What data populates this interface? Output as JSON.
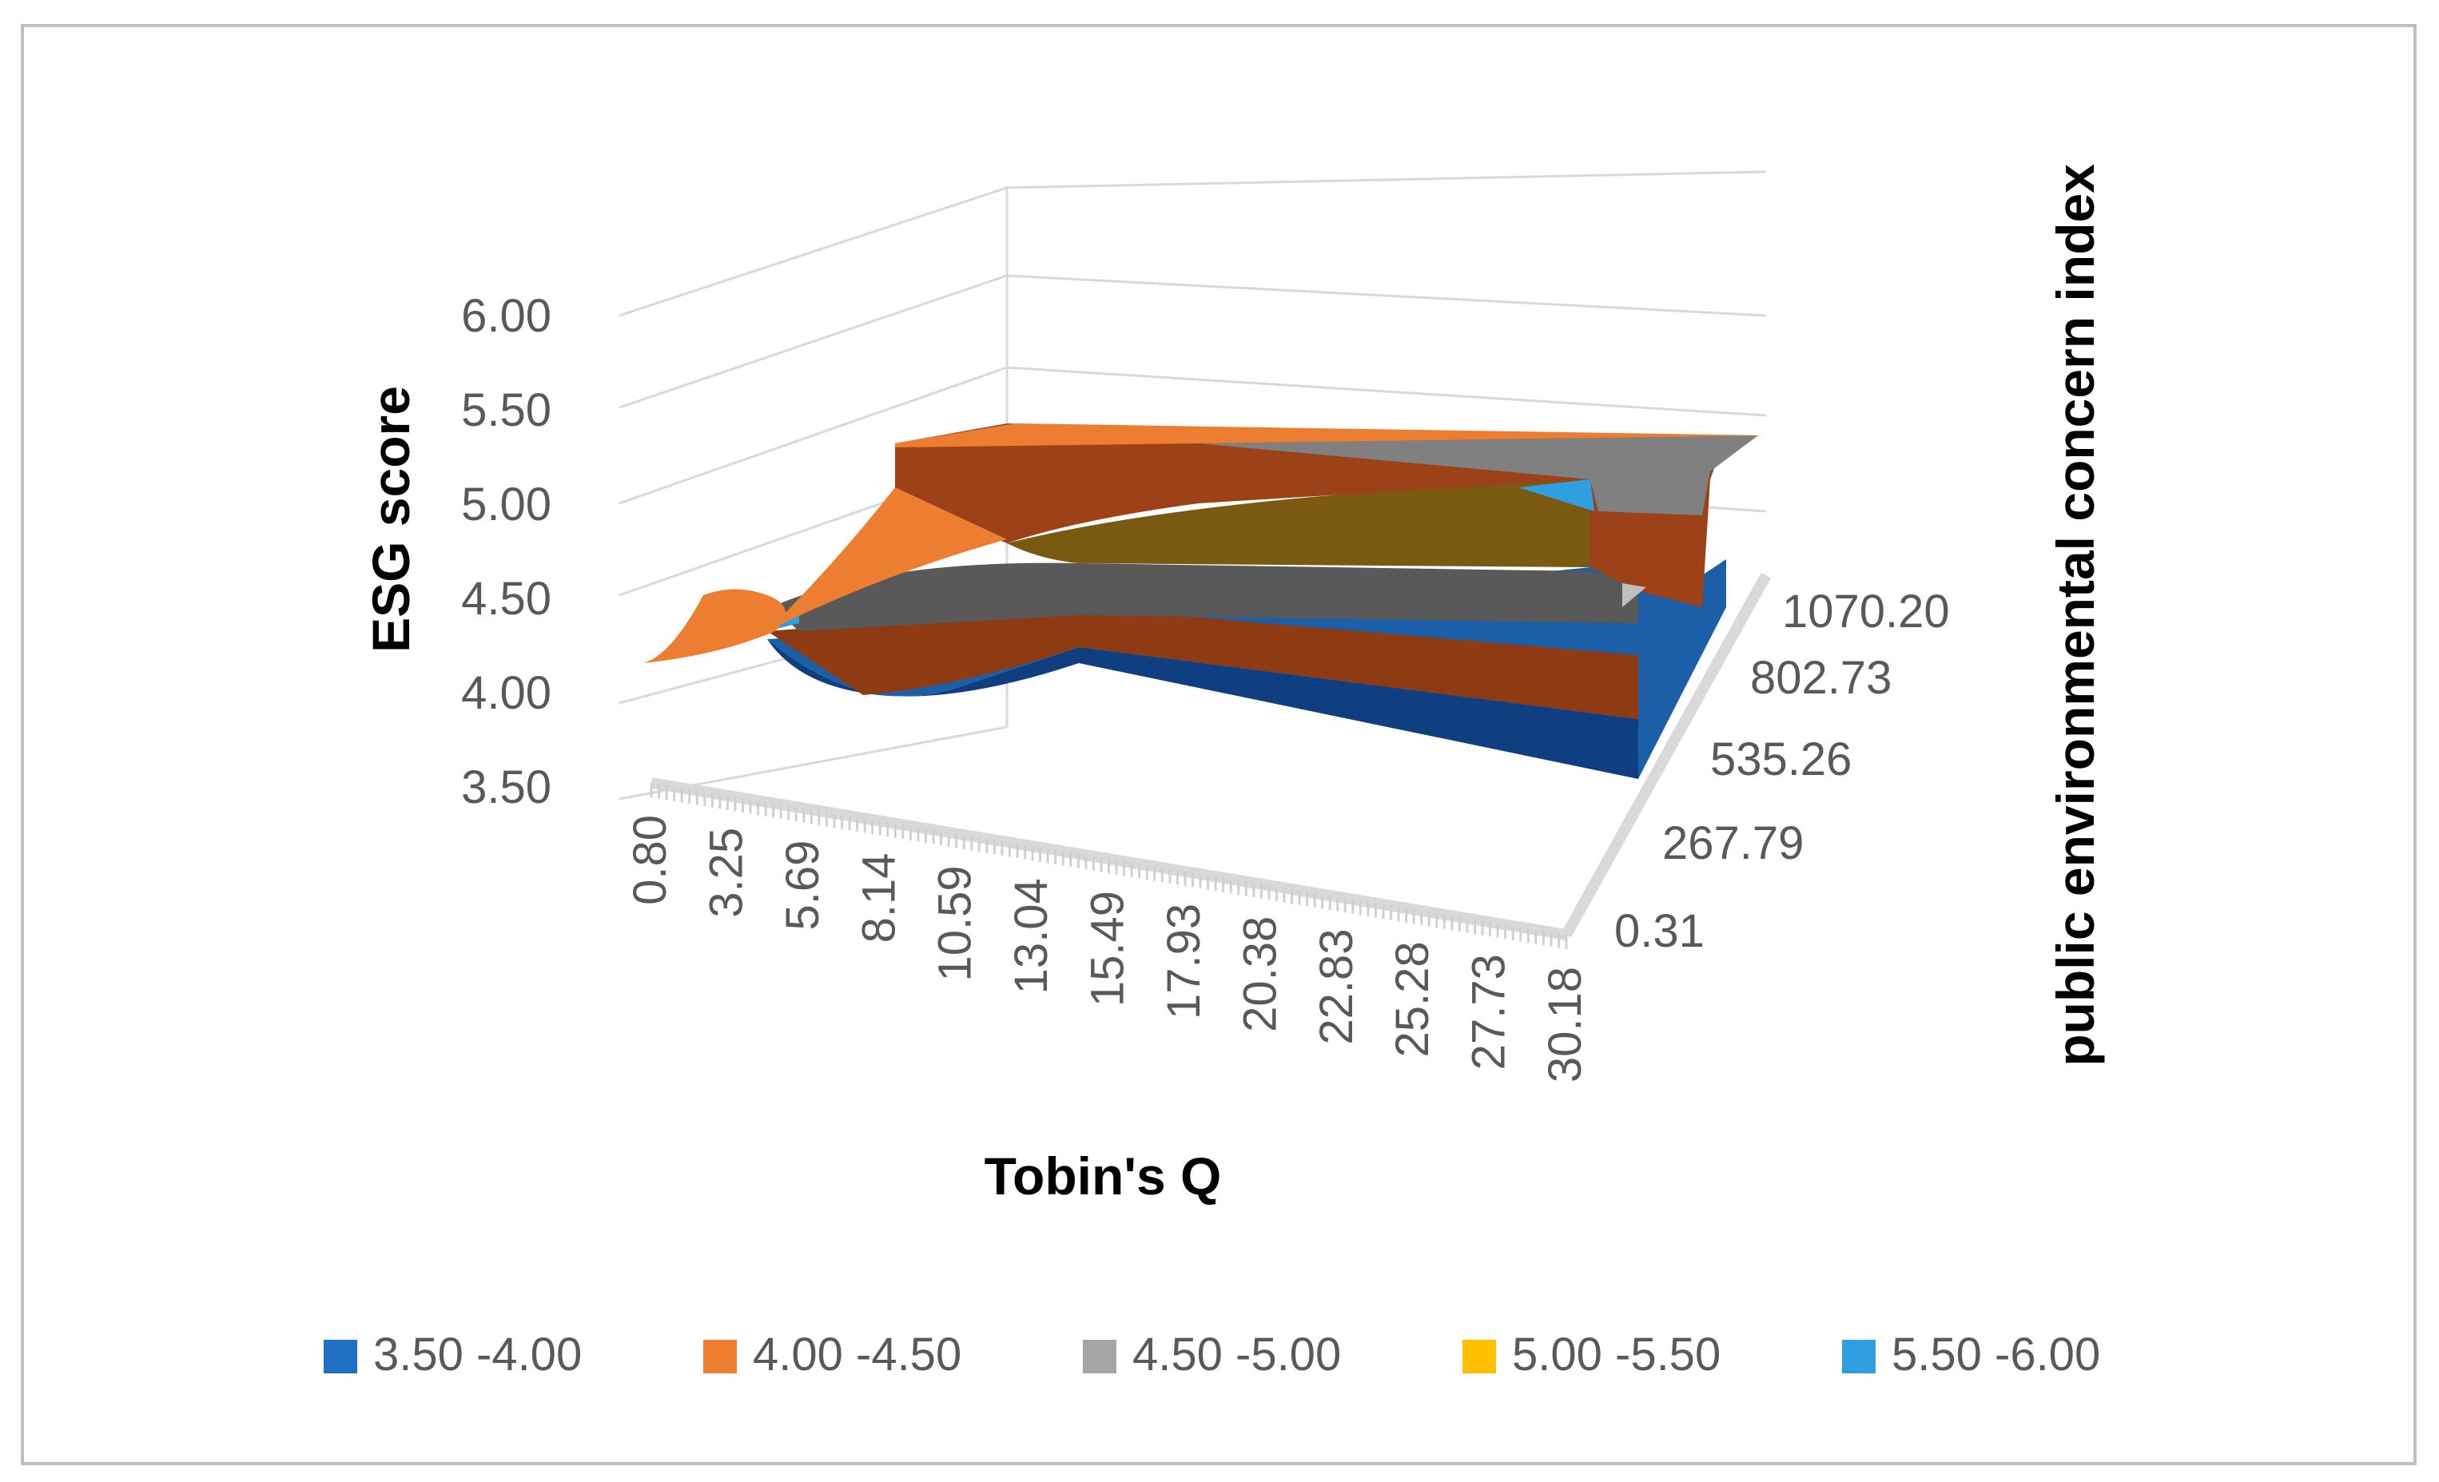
{
  "chart_data": {
    "type": "surface",
    "title": "",
    "xlabel": "Tobin's Q",
    "ylabel": "public environmental concern index",
    "zlabel": "ESG score",
    "x_ticks": [
      "0.80",
      "3.25",
      "5.69",
      "8.14",
      "10.59",
      "13.04",
      "15.49",
      "17.93",
      "20.38",
      "22.83",
      "25.28",
      "27.73",
      "30.18"
    ],
    "y_ticks": [
      "0.31",
      "267.79",
      "535.26",
      "802.73",
      "1070.20"
    ],
    "z_ticks": [
      "3.50",
      "4.00",
      "4.50",
      "5.00",
      "5.50",
      "6.00"
    ],
    "zlim": [
      3.5,
      6.0
    ],
    "legend_position": "bottom",
    "legend": [
      {
        "label": "3.50 -4.00",
        "color": "#1f6fc5"
      },
      {
        "label": "4.00 -4.50",
        "color": "#ed7d31"
      },
      {
        "label": "4.50 -5.00",
        "color": "#a5a5a5"
      },
      {
        "label": "5.00 -5.50",
        "color": "#ffc000"
      },
      {
        "label": "5.50 -6.00",
        "color": "#2f9fe0"
      }
    ]
  }
}
